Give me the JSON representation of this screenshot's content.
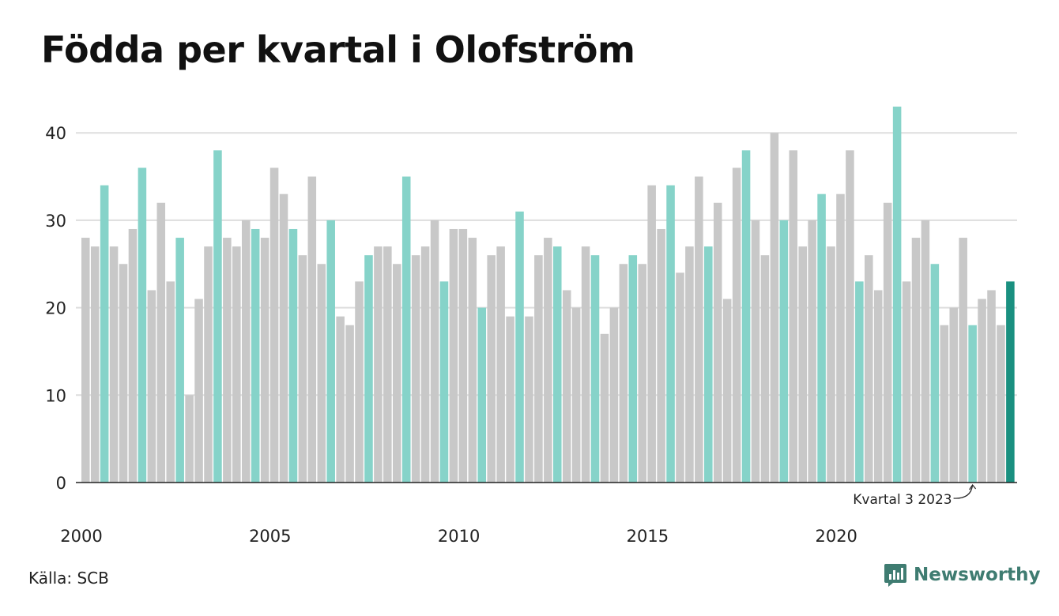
{
  "title": "Födda per kvartal i Olofström",
  "source": "Källa: SCB",
  "brand": "Newsworthy",
  "colors": {
    "bar_default": "#c8c8c8",
    "bar_highlight_quarter": "#86d3c9",
    "bar_latest": "#1a9080",
    "grid": "#dddddd",
    "axis": "#222222",
    "brand": "#3f7c71"
  },
  "chart_data": {
    "type": "bar",
    "title": "Födda per kvartal i Olofström",
    "xlabel": "",
    "ylabel": "",
    "ylim": [
      0,
      45
    ],
    "yticks": [
      0,
      10,
      20,
      30,
      40
    ],
    "xtick_labels": [
      "2000",
      "2005",
      "2010",
      "2015",
      "2020"
    ],
    "start_year": 2000,
    "quarters_per_year": 4,
    "highlight_quarter": 3,
    "grid": true,
    "annotation": {
      "text": "Kvartal 3 2023",
      "year": 2023,
      "quarter": 3
    },
    "values": [
      28,
      27,
      34,
      27,
      25,
      29,
      36,
      22,
      32,
      23,
      28,
      10,
      21,
      27,
      38,
      28,
      27,
      30,
      29,
      28,
      36,
      33,
      29,
      26,
      35,
      25,
      30,
      19,
      18,
      23,
      26,
      27,
      27,
      25,
      35,
      26,
      27,
      30,
      23,
      29,
      29,
      28,
      20,
      26,
      27,
      19,
      31,
      19,
      26,
      28,
      27,
      22,
      20,
      27,
      26,
      17,
      20,
      25,
      26,
      25,
      34,
      29,
      34,
      24,
      27,
      35,
      27,
      32,
      21,
      36,
      38,
      30,
      26,
      40,
      30,
      38,
      27,
      30,
      33,
      27,
      33,
      38,
      23,
      26,
      22,
      32,
      43,
      23,
      28,
      30,
      25,
      18,
      20,
      28,
      18,
      21,
      22,
      18,
      23
    ]
  }
}
